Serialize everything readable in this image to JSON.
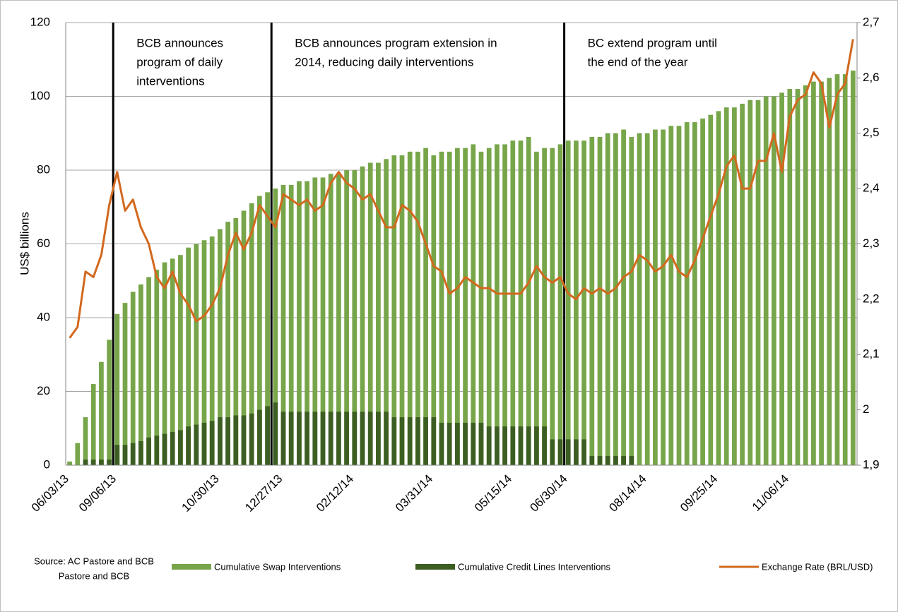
{
  "chart_data": {
    "type": "bar",
    "y_label": "US$ billions",
    "source": [
      "Source: AC Pastore and BCB",
      "Pastore and BCB"
    ],
    "annotations": [
      [
        "BCB announces",
        "program of daily",
        "interventions"
      ],
      [
        "BCB announces program extension in",
        "2014, reducing daily interventions"
      ],
      [
        "BC extend program until",
        "the end of the year"
      ]
    ],
    "categories": [
      "06/03/13",
      null,
      null,
      null,
      null,
      null,
      "09/06/13",
      null,
      null,
      null,
      null,
      null,
      null,
      null,
      null,
      null,
      null,
      null,
      null,
      "10/30/13",
      null,
      null,
      null,
      null,
      null,
      null,
      null,
      "12/27/13",
      null,
      null,
      null,
      null,
      null,
      null,
      null,
      null,
      "02/12/14",
      null,
      null,
      null,
      null,
      null,
      null,
      null,
      null,
      null,
      "03/31/14",
      null,
      null,
      null,
      null,
      null,
      null,
      null,
      null,
      null,
      "05/15/14",
      null,
      null,
      null,
      null,
      null,
      null,
      "06/30/14",
      null,
      null,
      null,
      null,
      null,
      null,
      null,
      null,
      null,
      "08/14/14",
      null,
      null,
      null,
      null,
      null,
      null,
      null,
      null,
      "09/25/14",
      null,
      null,
      null,
      null,
      null,
      null,
      null,
      null,
      "11/06/14",
      null,
      null,
      null,
      null,
      null,
      null,
      null,
      null
    ],
    "series": [
      {
        "name": "Cumulative Swap Interventions",
        "color": "#77a64a",
        "type": "bar",
        "values": [
          1,
          6,
          13,
          22,
          28,
          34,
          41,
          44,
          47,
          49,
          51,
          53,
          55,
          56,
          57,
          59,
          60,
          61,
          62,
          64,
          66,
          67,
          69,
          71,
          73,
          74,
          75,
          76,
          76,
          77,
          77,
          78,
          78,
          79,
          79,
          80,
          80,
          81,
          82,
          82,
          83,
          84,
          84,
          85,
          85,
          86,
          84,
          85,
          85,
          86,
          86,
          87,
          85,
          86,
          87,
          87,
          88,
          88,
          89,
          85,
          86,
          86,
          87,
          88,
          88,
          88,
          89,
          89,
          90,
          90,
          91,
          89,
          90,
          90,
          91,
          91,
          92,
          92,
          93,
          93,
          94,
          95,
          96,
          97,
          97,
          98,
          99,
          99,
          100,
          100,
          101,
          102,
          102,
          103,
          104,
          104,
          105,
          106,
          106,
          107
        ]
      },
      {
        "name": "Cumulative Credit Lines Interventions",
        "color": "#3d5e22",
        "type": "bar",
        "values": [
          0,
          0,
          1.5,
          1.5,
          1.5,
          1.5,
          5.5,
          5.5,
          6,
          6.5,
          7.5,
          8,
          8.5,
          9,
          9.5,
          10.5,
          11,
          11.5,
          12,
          13,
          13,
          13.5,
          13.5,
          14,
          15,
          16,
          17,
          14.5,
          14.5,
          14.5,
          14.5,
          14.5,
          14.5,
          14.5,
          14.5,
          14.5,
          14.5,
          14.5,
          14.5,
          14.5,
          14.5,
          13,
          13,
          13,
          13,
          13,
          13,
          11.5,
          11.5,
          11.5,
          11.5,
          11.5,
          11.5,
          10.5,
          10.5,
          10.5,
          10.5,
          10.5,
          10.5,
          10.5,
          10.5,
          7,
          7,
          7,
          7,
          7,
          2.5,
          2.5,
          2.5,
          2.5,
          2.5,
          2.5,
          0,
          0,
          0,
          0,
          0,
          0,
          0,
          0,
          0,
          0,
          0,
          0,
          0,
          0,
          0,
          0,
          0,
          0,
          0,
          0,
          0,
          0,
          0,
          0,
          0,
          0,
          0,
          0
        ]
      },
      {
        "name": "Exchange Rate (BRL/USD)",
        "color": "#d2691e",
        "type": "line",
        "axis": "y2",
        "values": [
          2.13,
          2.15,
          2.25,
          2.24,
          2.28,
          2.37,
          2.43,
          2.36,
          2.38,
          2.33,
          2.3,
          2.24,
          2.22,
          2.25,
          2.21,
          2.19,
          2.16,
          2.17,
          2.19,
          2.22,
          2.28,
          2.32,
          2.29,
          2.32,
          2.37,
          2.35,
          2.33,
          2.39,
          2.38,
          2.37,
          2.38,
          2.36,
          2.37,
          2.41,
          2.43,
          2.41,
          2.4,
          2.38,
          2.39,
          2.36,
          2.33,
          2.33,
          2.37,
          2.36,
          2.34,
          2.3,
          2.26,
          2.25,
          2.21,
          2.22,
          2.24,
          2.23,
          2.22,
          2.22,
          2.21,
          2.21,
          2.21,
          2.21,
          2.23,
          2.26,
          2.24,
          2.23,
          2.24,
          2.21,
          2.2,
          2.22,
          2.21,
          2.22,
          2.21,
          2.22,
          2.24,
          2.25,
          2.28,
          2.27,
          2.25,
          2.26,
          2.28,
          2.25,
          2.24,
          2.27,
          2.31,
          2.35,
          2.39,
          2.44,
          2.46,
          2.4,
          2.4,
          2.45,
          2.45,
          2.5,
          2.43,
          2.53,
          2.56,
          2.57,
          2.61,
          2.59,
          2.51,
          2.57,
          2.59,
          2.67
        ]
      }
    ],
    "ylim": [
      0,
      120
    ],
    "yticks": [
      0,
      20,
      40,
      60,
      80,
      100,
      120
    ],
    "y2lim": [
      1.9,
      2.7
    ],
    "y2ticks": [
      {
        "value": 1.9,
        "label": "1,9"
      },
      2,
      {
        "value": 2.1,
        "label": "2,1"
      },
      {
        "value": 2.2,
        "label": "2,2"
      },
      {
        "value": 2.3,
        "label": "2,3"
      },
      {
        "value": 2.4,
        "label": "2,4"
      },
      {
        "value": 2.5,
        "label": "2,5"
      },
      {
        "value": 2.6,
        "label": "2,6"
      },
      {
        "value": 2.7,
        "label": "2,7"
      }
    ],
    "grid": true
  }
}
